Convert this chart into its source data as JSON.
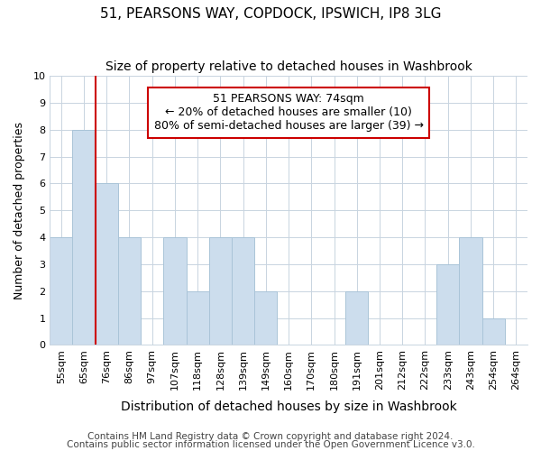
{
  "title": "51, PEARSONS WAY, COPDOCK, IPSWICH, IP8 3LG",
  "subtitle": "Size of property relative to detached houses in Washbrook",
  "xlabel": "Distribution of detached houses by size in Washbrook",
  "ylabel": "Number of detached properties",
  "categories": [
    "55sqm",
    "65sqm",
    "76sqm",
    "86sqm",
    "97sqm",
    "107sqm",
    "118sqm",
    "128sqm",
    "139sqm",
    "149sqm",
    "160sqm",
    "170sqm",
    "180sqm",
    "191sqm",
    "201sqm",
    "212sqm",
    "222sqm",
    "233sqm",
    "243sqm",
    "254sqm",
    "264sqm"
  ],
  "values": [
    4,
    8,
    6,
    4,
    0,
    4,
    2,
    4,
    4,
    2,
    0,
    0,
    0,
    2,
    0,
    0,
    0,
    3,
    4,
    1,
    0
  ],
  "bar_color": "#ccdded",
  "bar_edge_color": "#aac4d8",
  "subject_line_color": "#cc0000",
  "annotation_line1": "51 PEARSONS WAY: 74sqm",
  "annotation_line2": "← 20% of detached houses are smaller (10)",
  "annotation_line3": "80% of semi-detached houses are larger (39) →",
  "annotation_box_color": "#ffffff",
  "annotation_box_edge": "#cc0000",
  "ylim": [
    0,
    10
  ],
  "yticks": [
    0,
    1,
    2,
    3,
    4,
    5,
    6,
    7,
    8,
    9,
    10
  ],
  "footer1": "Contains HM Land Registry data © Crown copyright and database right 2024.",
  "footer2": "Contains public sector information licensed under the Open Government Licence v3.0.",
  "background_color": "#ffffff",
  "plot_bg_color": "#ffffff",
  "grid_color": "#c8d4e0",
  "title_fontsize": 11,
  "subtitle_fontsize": 10,
  "xlabel_fontsize": 10,
  "ylabel_fontsize": 9,
  "tick_fontsize": 8,
  "annotation_fontsize": 9,
  "footer_fontsize": 7.5
}
